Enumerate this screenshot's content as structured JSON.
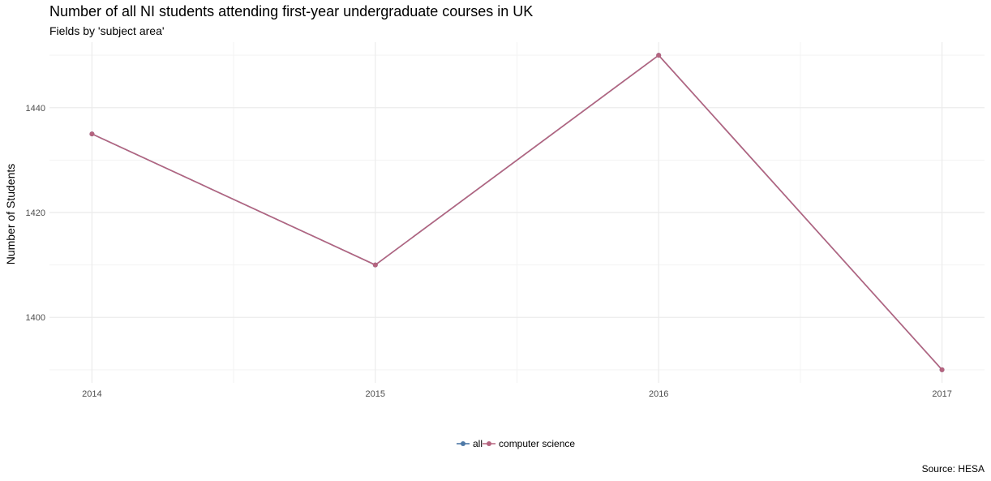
{
  "chart_data": {
    "type": "line",
    "title": "Number of all NI students attending first-year undergraduate courses in UK",
    "subtitle": "Fields by 'subject area'",
    "caption": "Source: HESA",
    "xlabel": "",
    "ylabel": "Number of Students",
    "x": [
      2014,
      2015,
      2016,
      2017
    ],
    "x_tick_labels": [
      "2014",
      "2015",
      "2016",
      "2017"
    ],
    "xlim": [
      2013.85,
      2017.15
    ],
    "ylim": [
      1387.5,
      1452.5
    ],
    "y_ticks": [
      1400,
      1420,
      1440
    ],
    "y_tick_labels": [
      "1400",
      "1420",
      "1440"
    ],
    "grid": true,
    "legend_position": "bottom",
    "series": [
      {
        "name": "all",
        "color": "#4e79a7",
        "values": [
          1435,
          1410,
          1450,
          1390
        ]
      },
      {
        "name": "computer science",
        "color": "#b5647f",
        "values": [
          1435,
          1410,
          1450,
          1390
        ]
      }
    ]
  }
}
